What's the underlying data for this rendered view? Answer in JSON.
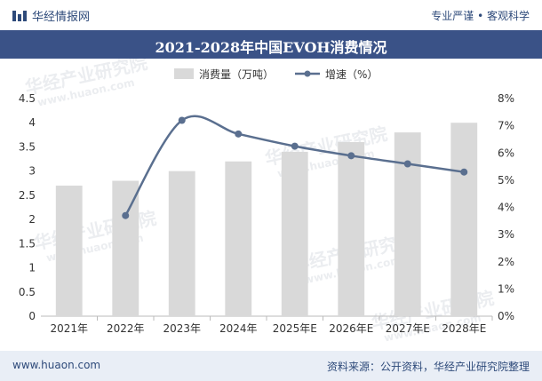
{
  "header": {
    "brand": "华经情报网",
    "motto": "专业严谨 • 客观科学"
  },
  "footer": {
    "url": "www.huaon.com",
    "source": "资料来源：公开资料，华经产业研究院整理"
  },
  "watermark": {
    "text": "华经产业研究院",
    "url": "www.huaon.com"
  },
  "colors": {
    "bar": "#d9d9d9",
    "line": "#5a6f8f",
    "title_bg": "#3a5287"
  },
  "chart_data": {
    "type": "bar+line",
    "title": "2021-2028年中国EVOH消费情况",
    "categories": [
      "2021年",
      "2022年",
      "2023年",
      "2024年",
      "2025年E",
      "2026年E",
      "2027年E",
      "2028年E"
    ],
    "series": [
      {
        "name": "消费量（万吨）",
        "type": "bar",
        "axis": "left",
        "values": [
          2.7,
          2.8,
          3.0,
          3.2,
          3.4,
          3.6,
          3.8,
          4.0
        ]
      },
      {
        "name": "增速（%）",
        "type": "line",
        "axis": "right",
        "values": [
          null,
          3.7,
          7.2,
          6.7,
          6.25,
          5.9,
          5.6,
          5.3
        ]
      }
    ],
    "left_axis": {
      "min": 0,
      "max": 4.5,
      "step": 0.5,
      "ticks": [
        "0",
        "0.5",
        "1",
        "1.5",
        "2",
        "2.5",
        "3",
        "3.5",
        "4",
        "4.5"
      ]
    },
    "right_axis": {
      "min": 0,
      "max": 8,
      "step": 1,
      "ticks": [
        "0%",
        "1%",
        "2%",
        "3%",
        "4%",
        "5%",
        "6%",
        "7%",
        "8%"
      ]
    },
    "legend": [
      "消费量（万吨）",
      "增速（%）"
    ]
  }
}
